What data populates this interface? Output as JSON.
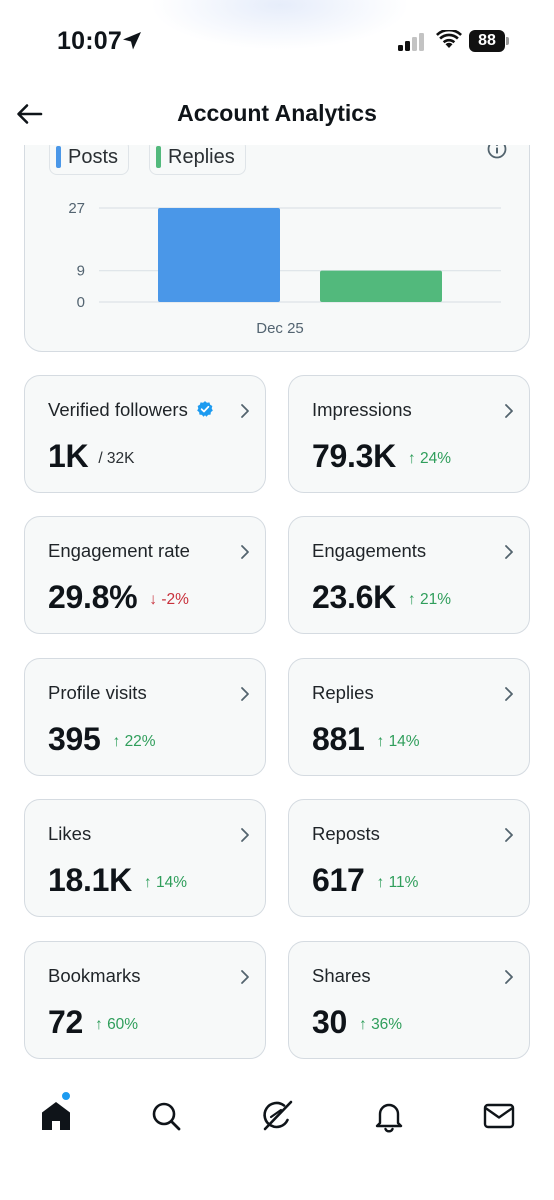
{
  "status_bar": {
    "time": "10:07",
    "battery": "88",
    "icons": [
      "location-arrow-icon",
      "cellular-signal-icon",
      "wifi-icon",
      "battery-icon"
    ]
  },
  "header": {
    "title": "Account Analytics",
    "back_icon": "arrow-left-icon"
  },
  "chart": {
    "legend": [
      {
        "label": "Posts",
        "color": "#4a97e8"
      },
      {
        "label": "Replies",
        "color": "#52b97c"
      }
    ],
    "info_icon": "info-circle-icon"
  },
  "chart_data": {
    "type": "bar",
    "categories": [
      "Dec 25"
    ],
    "series": [
      {
        "name": "Posts",
        "values": [
          27
        ]
      },
      {
        "name": "Replies",
        "values": [
          9
        ]
      }
    ],
    "yticks": [
      "27",
      "9",
      "0"
    ],
    "ytick_values": [
      27,
      9,
      0
    ],
    "ylim": [
      0,
      27
    ],
    "grid": true,
    "legend_placement": "top-left"
  },
  "metrics": [
    {
      "label": "Verified followers",
      "value": "1K",
      "delta": "/ 32K",
      "trend": "total",
      "verified": true
    },
    {
      "label": "Impressions",
      "value": "79.3K",
      "delta": "24%",
      "trend": "up"
    },
    {
      "label": "Engagement rate",
      "value": "29.8%",
      "delta": "-2%",
      "trend": "down"
    },
    {
      "label": "Engagements",
      "value": "23.6K",
      "delta": "21%",
      "trend": "up"
    },
    {
      "label": "Profile visits",
      "value": "395",
      "delta": "22%",
      "trend": "up"
    },
    {
      "label": "Replies",
      "value": "881",
      "delta": "14%",
      "trend": "up"
    },
    {
      "label": "Likes",
      "value": "18.1K",
      "delta": "14%",
      "trend": "up"
    },
    {
      "label": "Reposts",
      "value": "617",
      "delta": "11%",
      "trend": "up"
    },
    {
      "label": "Bookmarks",
      "value": "72",
      "delta": "60%",
      "trend": "up"
    },
    {
      "label": "Shares",
      "value": "30",
      "delta": "36%",
      "trend": "up"
    }
  ],
  "colors": {
    "up": "#2f9e5b",
    "down": "#c8303b",
    "verified": "#1d9bf0",
    "card_bg": "#f7f9f9",
    "card_border": "#d5dbe1"
  },
  "bottom_nav": [
    {
      "icon": "home-icon",
      "active": true,
      "notification_dot": true
    },
    {
      "icon": "search-icon",
      "active": false
    },
    {
      "icon": "grok-icon",
      "active": false
    },
    {
      "icon": "bell-icon",
      "active": false
    },
    {
      "icon": "mail-icon",
      "active": false
    }
  ]
}
